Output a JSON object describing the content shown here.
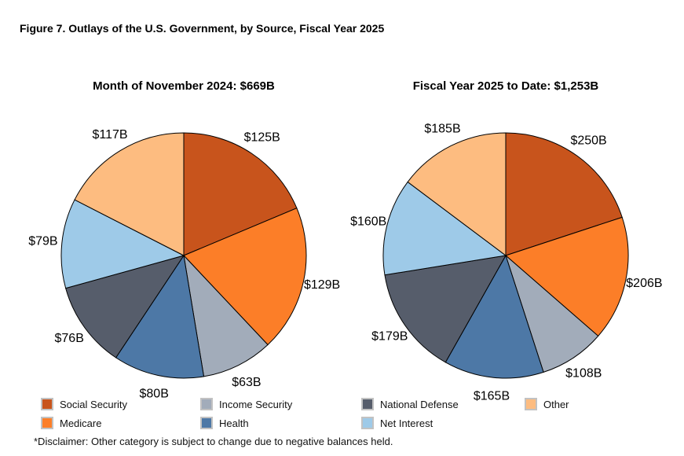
{
  "figure_title": "Figure 7. Outlays of the U.S. Government, by Source, Fiscal Year 2025",
  "disclaimer": "*Disclaimer: Other category is subject to change due to negative balances held.",
  "chart_data": {
    "type": "pie",
    "categories": [
      "Social Security",
      "Medicare",
      "Income Security",
      "Health",
      "National Defense",
      "Net Interest",
      "Other"
    ],
    "colors": [
      "#C8541C",
      "#FC7E28",
      "#A2ACBA",
      "#4D78A6",
      "#565D6B",
      "#9ECAE8",
      "#FDBC80"
    ],
    "edge_color": "#000000",
    "start_angle": "top",
    "direction": "clockwise",
    "legend_position": "bottom",
    "charts": [
      {
        "title": "Month of November 2024: $669B",
        "total": 669,
        "values": [
          125,
          129,
          63,
          80,
          76,
          79,
          117
        ],
        "labels": [
          "$125B",
          "$129B",
          "$63B",
          "$80B",
          "$76B",
          "$79B",
          "$117B"
        ]
      },
      {
        "title": "Fiscal Year 2025 to Date: $1,253B",
        "total": 1253,
        "values": [
          250,
          206,
          108,
          165,
          179,
          160,
          185
        ],
        "labels": [
          "$250B",
          "$206B",
          "$108B",
          "$165B",
          "$179B",
          "$160B",
          "$185B"
        ]
      }
    ]
  },
  "legend": {
    "items": [
      {
        "label": "Social Security",
        "color": "#C8541C",
        "col": 0,
        "row": 0
      },
      {
        "label": "Medicare",
        "color": "#FC7E28",
        "col": 0,
        "row": 1
      },
      {
        "label": "Income Security",
        "color": "#A2ACBA",
        "col": 1,
        "row": 0
      },
      {
        "label": "Health",
        "color": "#4D78A6",
        "col": 1,
        "row": 1
      },
      {
        "label": "National Defense",
        "color": "#565D6B",
        "col": 2,
        "row": 0
      },
      {
        "label": "Net Interest",
        "color": "#9ECAE8",
        "col": 2,
        "row": 1
      },
      {
        "label": "Other",
        "color": "#FDBC80",
        "col": 3,
        "row": 0
      }
    ]
  }
}
